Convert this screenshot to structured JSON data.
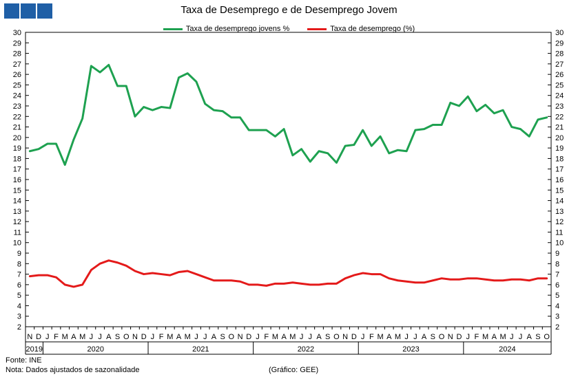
{
  "header": {
    "logo_colors": [
      "#1f5fa6",
      "#1f5fa6",
      "#1f5fa6"
    ]
  },
  "footer": {
    "source": "Fonte: INE",
    "note": "Nota: Dados ajustados de sazonalidade",
    "credit": "(Gráfico: GEE)"
  },
  "chart_data": {
    "type": "line",
    "title": "Taxa de Desemprego e de Desemprego Jovem",
    "xlabel": "",
    "ylabel": "",
    "ylim": [
      2,
      30
    ],
    "y_ticks": [
      2,
      3,
      4,
      5,
      6,
      7,
      8,
      9,
      10,
      11,
      12,
      13,
      14,
      15,
      16,
      17,
      18,
      19,
      20,
      21,
      22,
      23,
      24,
      25,
      26,
      27,
      28,
      29,
      30
    ],
    "grid": false,
    "legend_position": "top-center",
    "y_axis": "both sides",
    "x_month_labels": [
      "N",
      "D",
      "J",
      "F",
      "M",
      "A",
      "M",
      "J",
      "J",
      "A",
      "S",
      "O",
      "N",
      "D",
      "J",
      "F",
      "M",
      "A",
      "M",
      "J",
      "J",
      "A",
      "S",
      "O",
      "N",
      "D",
      "J",
      "F",
      "M",
      "A",
      "M",
      "J",
      "J",
      "A",
      "S",
      "O",
      "N",
      "D",
      "J",
      "F",
      "M",
      "A",
      "M",
      "J",
      "J",
      "A",
      "S",
      "O",
      "N",
      "D",
      "J",
      "F",
      "M",
      "A",
      "M",
      "J",
      "J",
      "A",
      "S",
      "O"
    ],
    "x_year_labels": [
      {
        "label": "2019",
        "start": 0,
        "end": 1
      },
      {
        "label": "2020",
        "start": 2,
        "end": 13
      },
      {
        "label": "2021",
        "start": 14,
        "end": 25
      },
      {
        "label": "2022",
        "start": 26,
        "end": 37
      },
      {
        "label": "2023",
        "start": 38,
        "end": 49
      },
      {
        "label": "2024",
        "start": 50,
        "end": 59
      }
    ],
    "series": [
      {
        "name": "Taxa de desemprego jovens %",
        "color": "#1ea150",
        "values": [
          18.7,
          18.9,
          19.4,
          19.4,
          17.4,
          19.8,
          21.8,
          26.8,
          26.2,
          26.9,
          24.9,
          24.9,
          22.0,
          22.9,
          22.6,
          22.9,
          22.8,
          25.7,
          26.1,
          25.3,
          23.2,
          22.6,
          22.5,
          21.9,
          21.9,
          20.7,
          20.7,
          20.7,
          20.1,
          20.8,
          18.3,
          18.9,
          17.7,
          18.7,
          18.5,
          17.6,
          19.2,
          19.3,
          20.7,
          19.2,
          20.1,
          18.5,
          18.8,
          18.7,
          20.7,
          20.8,
          21.2,
          21.2,
          23.3,
          23.0,
          23.9,
          22.5,
          23.1,
          22.3,
          22.6,
          21.0,
          20.8,
          20.1,
          21.7,
          21.9
        ]
      },
      {
        "name": "Taxa de desemprego (%)",
        "color": "#e41a1a",
        "values": [
          6.8,
          6.9,
          6.9,
          6.7,
          6.0,
          5.8,
          6.0,
          7.4,
          8.0,
          8.3,
          8.1,
          7.8,
          7.3,
          7.0,
          7.1,
          7.0,
          6.9,
          7.2,
          7.3,
          7.0,
          6.7,
          6.4,
          6.4,
          6.4,
          6.3,
          6.0,
          6.0,
          5.9,
          6.1,
          6.1,
          6.2,
          6.1,
          6.0,
          6.0,
          6.1,
          6.1,
          6.6,
          6.9,
          7.1,
          7.0,
          7.0,
          6.6,
          6.4,
          6.3,
          6.2,
          6.2,
          6.4,
          6.6,
          6.5,
          6.5,
          6.6,
          6.6,
          6.5,
          6.4,
          6.4,
          6.5,
          6.5,
          6.4,
          6.6,
          6.6
        ]
      }
    ]
  }
}
